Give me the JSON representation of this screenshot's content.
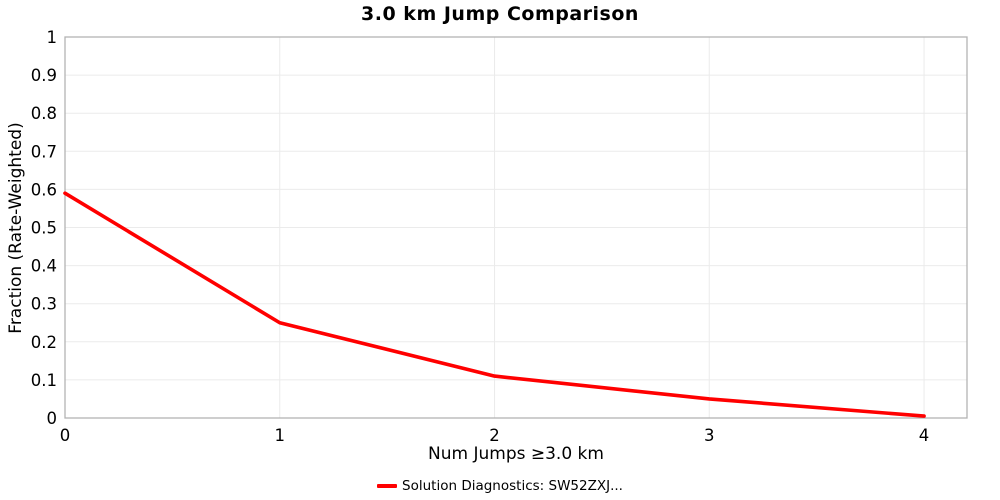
{
  "chart_data": {
    "type": "line",
    "title": "3.0 km Jump Comparison",
    "xlabel": "Num Jumps ≥3.0 km",
    "ylabel": "Fraction (Rate-Weighted)",
    "x": [
      0,
      1,
      2,
      3,
      4
    ],
    "series": [
      {
        "name": "Solution Diagnostics: SW52ZXJ...",
        "values": [
          0.59,
          0.25,
          0.11,
          0.05,
          0.005
        ],
        "color": "#ff0000"
      }
    ],
    "xlim": [
      0,
      4.2
    ],
    "ylim": [
      0,
      1
    ],
    "xticks": [
      0,
      1,
      2,
      3,
      4
    ],
    "yticks": [
      0,
      0.1,
      0.2,
      0.3,
      0.4,
      0.5,
      0.6,
      0.7,
      0.8,
      0.9,
      1
    ],
    "grid": true,
    "legend_position": "bottom-center",
    "colors": {
      "grid": "#ebebeb",
      "border": "#b3b3b3",
      "text": "#000000",
      "background": "#ffffff"
    }
  }
}
